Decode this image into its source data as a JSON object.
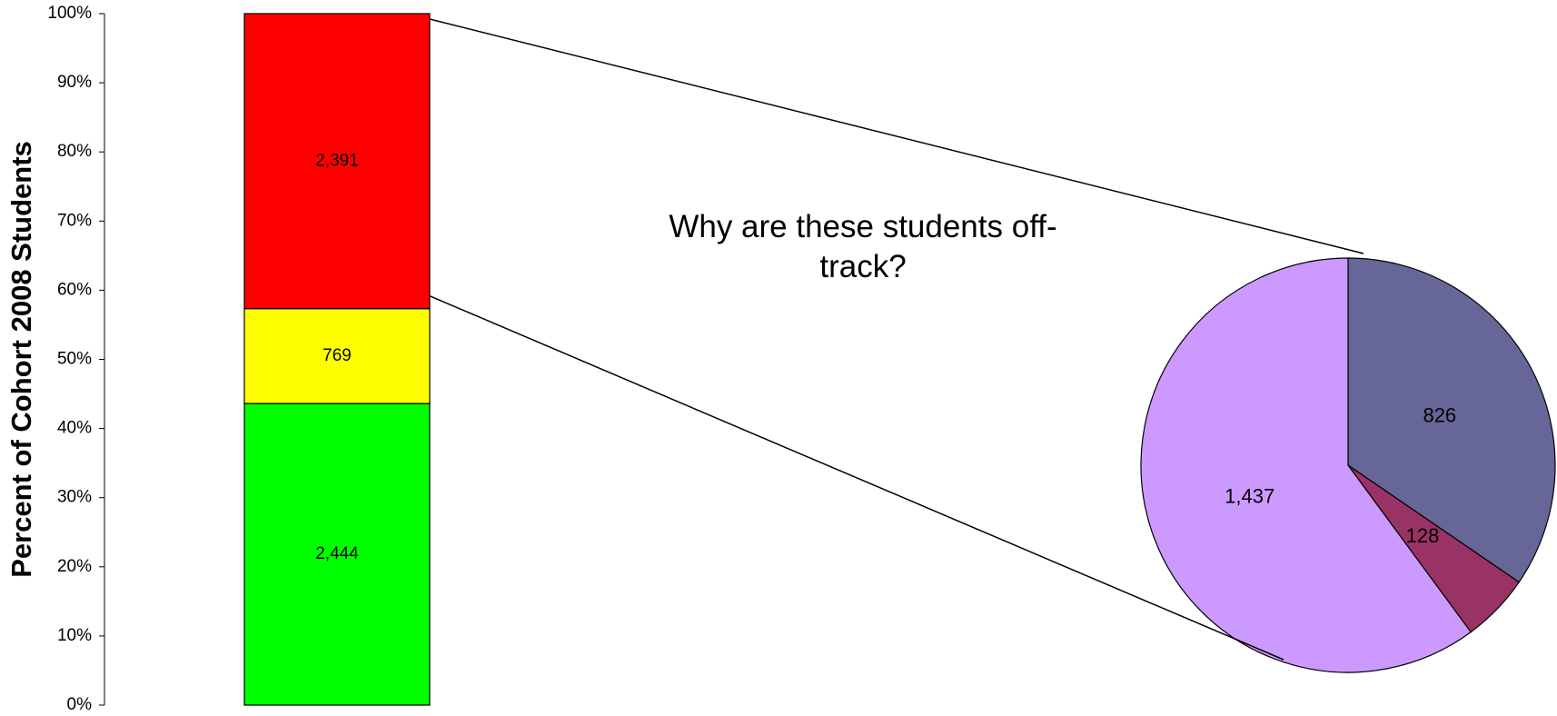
{
  "chart_data": [
    {
      "type": "percent_stacked_bar",
      "ylabel": "Percent of Cohort 2008 Students",
      "ylim": [
        0,
        100
      ],
      "yticks": [
        {
          "value": 0,
          "label": "0%"
        },
        {
          "value": 10,
          "label": "10%"
        },
        {
          "value": 20,
          "label": "20%"
        },
        {
          "value": 30,
          "label": "30%"
        },
        {
          "value": 40,
          "label": "40%"
        },
        {
          "value": 50,
          "label": "50%"
        },
        {
          "value": 60,
          "label": "60%"
        },
        {
          "value": 70,
          "label": "70%"
        },
        {
          "value": 80,
          "label": "80%"
        },
        {
          "value": 90,
          "label": "90%"
        },
        {
          "value": 100,
          "label": "100%"
        }
      ],
      "series": [
        {
          "color": "#00ff00",
          "values": [
            2444
          ],
          "value_labels": [
            "2,444"
          ]
        },
        {
          "color": "#ffff00",
          "values": [
            769
          ],
          "value_labels": [
            "769"
          ]
        },
        {
          "color": "#ff0000",
          "values": [
            2391
          ],
          "value_labels": [
            "2,391"
          ]
        }
      ]
    },
    {
      "type": "pie",
      "title": "Why are these students off-track?",
      "values": [
        826,
        128,
        1437
      ],
      "value_labels": [
        "826",
        "128",
        "1,437"
      ],
      "colors": [
        "#666699",
        "#993366",
        "#cc99ff"
      ]
    }
  ]
}
